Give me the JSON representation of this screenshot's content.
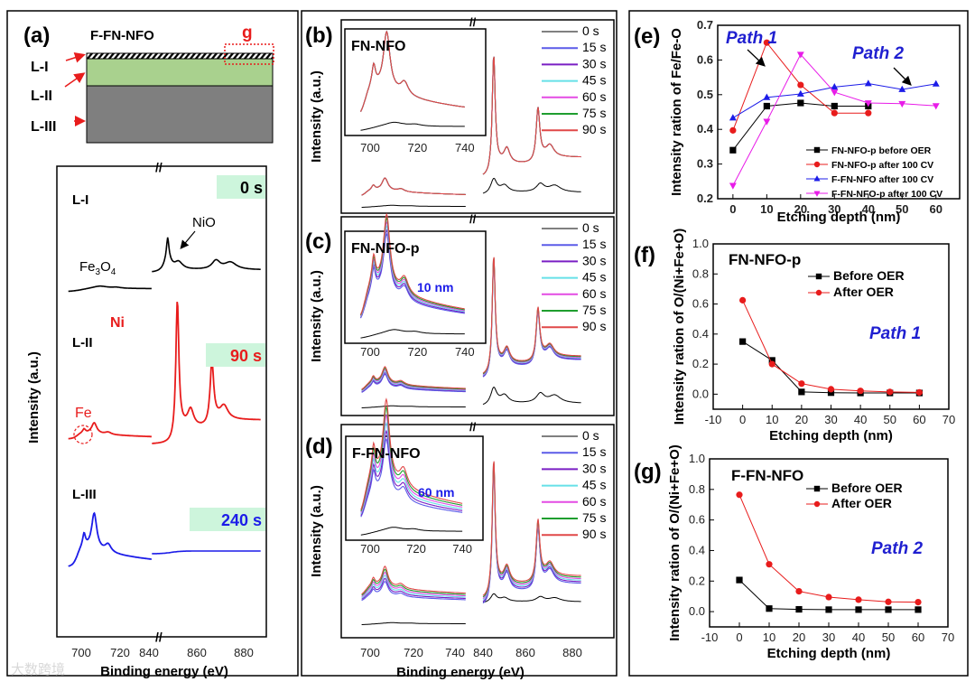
{
  "figure": {
    "panel_a": {
      "label": "(a)",
      "sample": "F-FN-NFO",
      "region_label": "g",
      "layers": [
        "L-I",
        "L-II",
        "L-III"
      ],
      "spectra": [
        {
          "layer": "L-I",
          "time": "0 s",
          "annotations": [
            "NiO",
            "Fe3O4"
          ]
        },
        {
          "layer": "L-II",
          "time": "90 s",
          "annotations": [
            "Ni",
            "Fe"
          ]
        },
        {
          "layer": "L-III",
          "time": "240 s"
        }
      ],
      "fe3o4_main": "Fe",
      "fe3o4_sub": "3",
      "fe3o4_tail": "O",
      "fe3o4_sub2": "4",
      "xticks": [
        "700",
        "720",
        "840",
        "860",
        "880"
      ],
      "xlabel": "Binding energy (eV)",
      "ylabel": "Intensity (a.u.)"
    },
    "panels_bcd": {
      "labels": [
        "(b)",
        "(c)",
        "(d)"
      ],
      "titles": [
        "FN-NFO",
        "FN-NFO-p",
        "F-FN-NFO"
      ],
      "inset_annotations": [
        "10 nm",
        "60 nm"
      ],
      "legend": [
        "0 s",
        "15 s",
        "30 s",
        "45 s",
        "60 s",
        "75 s",
        "90 s"
      ],
      "legend_colors": [
        "#000000",
        "#5b5be8",
        "#7a1fc4",
        "#66e0e8",
        "#e44be4",
        "#1f9e2f",
        "#e04848"
      ],
      "inset_xticks": [
        "700",
        "720",
        "740"
      ],
      "xticks": [
        "700",
        "720",
        "740",
        "840",
        "860",
        "880"
      ],
      "ylabel": "Intensity (a.u.)",
      "xlabel": "Binding energy (eV)"
    },
    "watermark": "大数跨境"
  },
  "chart_data": [
    {
      "id": "e",
      "label": "(e)",
      "type": "line",
      "xlabel": "Etching depth (nm)",
      "ylabel": "Intensity ration of Fe/Fe-O",
      "xlim": [
        -4.5,
        67
      ],
      "ylim": [
        0.2,
        0.7
      ],
      "xticks": [
        0,
        10,
        20,
        30,
        40,
        50,
        60
      ],
      "yticks": [
        0.2,
        0.3,
        0.4,
        0.5,
        0.6,
        0.7
      ],
      "legend_position": "bottom-right",
      "annotations": [
        "Path 1",
        "Path 2"
      ],
      "series": [
        {
          "name": "FN-NFO-p before OER",
          "color": "#000000",
          "marker": "square",
          "x": [
            0,
            10,
            20,
            30,
            40
          ],
          "y": [
            0.34,
            0.467,
            0.476,
            0.467,
            0.467
          ]
        },
        {
          "name": "FN-NFO-p after 100 CV",
          "color": "#e81c1c",
          "marker": "circle",
          "x": [
            0,
            10,
            20,
            30,
            40
          ],
          "y": [
            0.397,
            0.65,
            0.528,
            0.447,
            0.447
          ]
        },
        {
          "name": "F-FN-NFO after 100 CV",
          "color": "#1c1ce8",
          "marker": "triangle-up",
          "x": [
            0,
            10,
            20,
            30,
            40,
            50,
            60
          ],
          "y": [
            0.433,
            0.492,
            0.502,
            0.522,
            0.532,
            0.515,
            0.531
          ]
        },
        {
          "name": "F-FN-NFO-p after 100 CV",
          "color": "#e81ce8",
          "marker": "triangle-down",
          "x": [
            0,
            10,
            20,
            30,
            40,
            50,
            60
          ],
          "y": [
            0.238,
            0.423,
            0.616,
            0.507,
            0.476,
            0.474,
            0.468
          ]
        }
      ]
    },
    {
      "id": "f",
      "label": "(f)",
      "title": "FN-NFO-p",
      "type": "line",
      "xlabel": "Etching depth (nm)",
      "ylabel": "Intensity ration of O/(Ni+Fe+O)",
      "xlim": [
        -10,
        70
      ],
      "ylim": [
        -0.1,
        1.0
      ],
      "xticks": [
        -10,
        0,
        10,
        20,
        30,
        40,
        50,
        60,
        70
      ],
      "yticks": [
        0.0,
        0.2,
        0.4,
        0.6,
        0.8,
        1.0
      ],
      "legend_position": "top-center",
      "annotations": [
        "Path 1"
      ],
      "series": [
        {
          "name": "Before OER",
          "color": "#000000",
          "marker": "square",
          "x": [
            0,
            10,
            20,
            30,
            40,
            50,
            60
          ],
          "y": [
            0.35,
            0.225,
            0.015,
            0.01,
            0.008,
            0.008,
            0.008
          ]
        },
        {
          "name": "After OER",
          "color": "#e81c1c",
          "marker": "circle",
          "x": [
            0,
            10,
            20,
            30,
            40,
            50,
            60
          ],
          "y": [
            0.625,
            0.2,
            0.07,
            0.033,
            0.022,
            0.015,
            0.012
          ]
        }
      ]
    },
    {
      "id": "g",
      "label": "(g)",
      "title": "F-FN-NFO",
      "type": "line",
      "xlabel": "Etching depth (nm)",
      "ylabel": "Intensity ration of O/(Ni+Fe+O)",
      "xlim": [
        -10,
        70
      ],
      "ylim": [
        -0.1,
        1.0
      ],
      "xticks": [
        -10,
        0,
        10,
        20,
        30,
        40,
        50,
        60,
        70
      ],
      "yticks": [
        0.0,
        0.2,
        0.4,
        0.6,
        0.8,
        1.0
      ],
      "legend_position": "top-center",
      "annotations": [
        "Path 2"
      ],
      "series": [
        {
          "name": "Before OER",
          "color": "#000000",
          "marker": "square",
          "x": [
            0,
            10,
            20,
            30,
            40,
            50,
            60
          ],
          "y": [
            0.207,
            0.02,
            0.015,
            0.013,
            0.013,
            0.013,
            0.013
          ]
        },
        {
          "name": "After OER",
          "color": "#e81c1c",
          "marker": "circle",
          "x": [
            0,
            10,
            20,
            30,
            40,
            50,
            60
          ],
          "y": [
            0.765,
            0.31,
            0.133,
            0.095,
            0.078,
            0.064,
            0.062
          ]
        }
      ]
    }
  ]
}
